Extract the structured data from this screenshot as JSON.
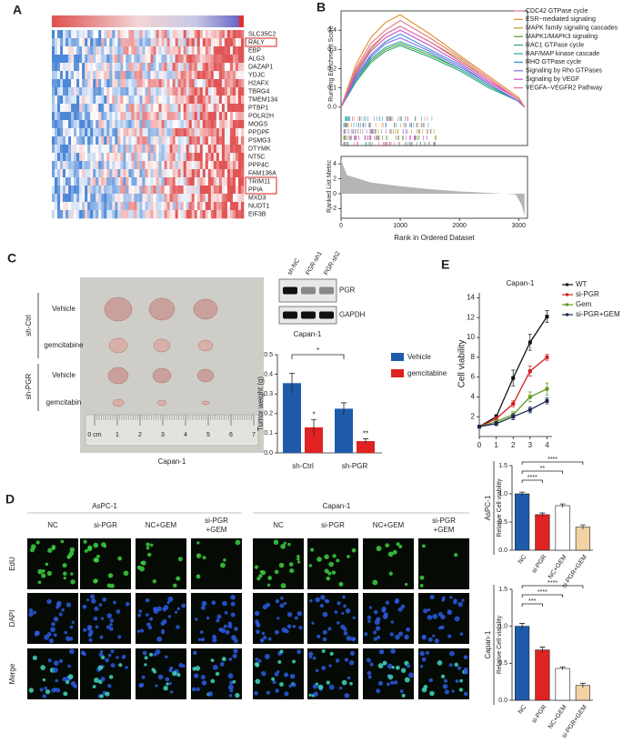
{
  "panels": {
    "a": {
      "label": "A",
      "genes": [
        "SLC35C2",
        "RALY",
        "EBP",
        "ALG3",
        "DAZAP1",
        "YDJC",
        "H2AFX",
        "TBRG4",
        "TMEM134",
        "PTBP1",
        "POLR2H",
        "MOGS",
        "PPDPF",
        "PSMG3",
        "DTYMK",
        "NT5C",
        "PPP4C",
        "FAM136A",
        "TRIM11",
        "PPIA",
        "MXD3",
        "NUDT1",
        "EIF3B"
      ]
    },
    "b": {
      "label": "B"
    },
    "c": {
      "label": "C",
      "groups": [
        "sh-Ctrl",
        "sh-PGR"
      ],
      "rows": [
        "Vehicle",
        "gemcitabine",
        "Vehicle",
        "gemcitabin"
      ],
      "ruler_labels": [
        "0 cm",
        "1",
        "2",
        "3",
        "4",
        "5",
        "6",
        "7"
      ],
      "caption": "Capan-1",
      "blot": {
        "lanes": [
          "sh-NC",
          "PGR-sh1",
          "PGR-sh2"
        ],
        "bands": [
          "PGR",
          "GAPDH"
        ],
        "caption": "Capan-1"
      }
    },
    "d": {
      "label": "D",
      "groups": [
        "AsPC-1",
        "Capan-1"
      ],
      "columns": [
        [
          "NC"
        ],
        [
          "si-PGR"
        ],
        [
          "NC+GEM"
        ],
        [
          "si-PGR",
          "+GEM"
        ]
      ],
      "rows": [
        "EdU",
        "DAPI",
        "Merge"
      ]
    },
    "e": {
      "label": "E"
    }
  },
  "chart_data": [
    {
      "type": "line",
      "ylabel": "Running Enrichment Score",
      "x": [
        0,
        250,
        500,
        750,
        1000,
        1500,
        2000,
        2500,
        3000,
        3100
      ],
      "xlim": [
        0,
        3150
      ],
      "ylim": [
        -0.02,
        0.5
      ],
      "yticks": [
        {
          "value": 0,
          "label": "0.0"
        },
        0.1,
        0.2,
        0.3,
        0.4
      ],
      "series": [
        {
          "name": "CDC42 GTPase cycle",
          "color": "#e8737f",
          "values": [
            0,
            0.2,
            0.33,
            0.4,
            0.45,
            0.36,
            0.26,
            0.15,
            0.04,
            0
          ]
        },
        {
          "name": "ESR−mediated signaling",
          "color": "#e0902a",
          "values": [
            0,
            0.22,
            0.36,
            0.44,
            0.48,
            0.38,
            0.27,
            0.16,
            0.05,
            0
          ]
        },
        {
          "name": "MAPK family signaling cascades",
          "color": "#b8a020",
          "values": [
            0,
            0.18,
            0.3,
            0.38,
            0.42,
            0.34,
            0.25,
            0.14,
            0.04,
            0
          ]
        },
        {
          "name": "MAPK1/MAPK3 signaling",
          "color": "#5aa02c",
          "values": [
            0,
            0.14,
            0.24,
            0.3,
            0.33,
            0.27,
            0.2,
            0.11,
            0.03,
            0
          ]
        },
        {
          "name": "RAC1 GTPase cycle",
          "color": "#2aa87a",
          "values": [
            0,
            0.13,
            0.23,
            0.29,
            0.32,
            0.26,
            0.19,
            0.1,
            0.03,
            0
          ]
        },
        {
          "name": "RAF/MAP kinase cascade",
          "color": "#22a8b8",
          "values": [
            0,
            0.14,
            0.25,
            0.31,
            0.34,
            0.28,
            0.2,
            0.11,
            0.03,
            0
          ]
        },
        {
          "name": "RHO GTPase cycle",
          "color": "#3a8fd8",
          "values": [
            0,
            0.16,
            0.27,
            0.34,
            0.38,
            0.3,
            0.22,
            0.12,
            0.03,
            0
          ]
        },
        {
          "name": "Signaling by Rho GTPases",
          "color": "#8a6ad8",
          "values": [
            0,
            0.15,
            0.26,
            0.33,
            0.36,
            0.29,
            0.21,
            0.12,
            0.03,
            0
          ]
        },
        {
          "name": "Signaling by VEGF",
          "color": "#d048c8",
          "values": [
            0,
            0.17,
            0.29,
            0.36,
            0.4,
            0.32,
            0.23,
            0.13,
            0.04,
            0
          ]
        },
        {
          "name": "VEGFA−VEGFR2 Pathway",
          "color": "#e86aa8",
          "values": [
            0,
            0.19,
            0.31,
            0.38,
            0.42,
            0.34,
            0.24,
            0.14,
            0.04,
            0
          ]
        }
      ]
    },
    {
      "type": "area",
      "ylabel": "Ranked List Metric",
      "xlabel": "Rank in Ordered Dataset",
      "x": [
        0,
        100,
        500,
        1000,
        1500,
        2000,
        2500,
        2950,
        3050,
        3100
      ],
      "values": [
        4.5,
        2.5,
        1.5,
        1.0,
        0.6,
        0.3,
        0.1,
        -0.1,
        -1.5,
        -3
      ],
      "xlim": [
        0,
        3150
      ],
      "ylim": [
        -3.3,
        5
      ],
      "xticks": [
        0,
        1000,
        2000,
        3000
      ],
      "yticks": [
        4,
        2,
        0,
        -2
      ],
      "color": "#b5b5b5"
    },
    {
      "type": "grouped_bar",
      "ylabel": "Tumor weight (g)",
      "categories": [
        "sh-Ctrl",
        "sh-PGR"
      ],
      "ylim": [
        0,
        0.5
      ],
      "yticks": [
        {
          "value": 0,
          "label": "0.0"
        },
        0.1,
        0.2,
        0.3,
        0.4,
        0.5
      ],
      "series": [
        {
          "name": "Vehicle",
          "color": "#1f5bab",
          "values": [
            0.355,
            0.225
          ],
          "errors": [
            0.05,
            0.03
          ]
        },
        {
          "name": "gemcitabine",
          "color": "#e02222",
          "values": [
            0.13,
            0.06
          ],
          "errors": [
            0.04,
            0.012
          ]
        }
      ],
      "annotations": [
        "*",
        "*",
        "**"
      ]
    },
    {
      "type": "line_markers",
      "title": "Capan-1",
      "ylabel": "Cell viability",
      "x": [
        0,
        1,
        2,
        3,
        4
      ],
      "xlim": [
        0,
        4.3
      ],
      "xticks": [
        0,
        1,
        2,
        3,
        4
      ],
      "ylim": [
        0,
        14.5
      ],
      "yticks": [
        2,
        4,
        6,
        8,
        10,
        12,
        14
      ],
      "series": [
        {
          "name": "WT",
          "color": "#111111",
          "values": [
            1,
            2,
            5.9,
            9.5,
            12.1
          ],
          "errors": [
            0.1,
            0.2,
            0.8,
            0.8,
            0.6
          ]
        },
        {
          "name": "si-PGR",
          "color": "#d42020",
          "values": [
            1,
            1.8,
            3.3,
            6.6,
            8
          ],
          "errors": [
            0.1,
            0.2,
            0.3,
            0.5,
            0.3
          ]
        },
        {
          "name": "Gem",
          "color": "#5e9a1c",
          "values": [
            1,
            1.5,
            2.2,
            4,
            4.8
          ],
          "errors": [
            0.1,
            0.2,
            0.3,
            0.5,
            0.6
          ]
        },
        {
          "name": "si-PGR+GEM",
          "color": "#1a2450",
          "values": [
            1,
            1.3,
            2,
            2.7,
            3.6
          ],
          "errors": [
            0.1,
            0.2,
            0.3,
            0.3,
            0.3
          ]
        }
      ]
    },
    {
      "type": "bar",
      "title": "AsPC-1",
      "ylabel": "Relative Cell viability",
      "categories": [
        "NC",
        "si-PGR",
        "NC+GEM",
        "si-PGR+GEM"
      ],
      "values": [
        1.0,
        0.63,
        0.79,
        0.41
      ],
      "errors": [
        0.03,
        0.03,
        0.03,
        0.04
      ],
      "colors": [
        "#1f5bab",
        "#e02222",
        "#ffffff",
        "#f2d2a4"
      ],
      "ylim": [
        0,
        1.5
      ],
      "yticks": [
        {
          "value": 0,
          "label": "0.0"
        },
        0.5,
        {
          "value": 1,
          "label": "1.0"
        },
        1.5
      ],
      "annotations": [
        "****",
        "**",
        "****"
      ]
    },
    {
      "type": "bar",
      "title": "Capan-1",
      "ylabel": "Relative Cell viability",
      "categories": [
        "NC",
        "si-PGR",
        "NC+GEM",
        "si-PGR+GEM"
      ],
      "values": [
        1.0,
        0.68,
        0.43,
        0.2
      ],
      "errors": [
        0.04,
        0.04,
        0.02,
        0.03
      ],
      "colors": [
        "#1f5bab",
        "#e02222",
        "#ffffff",
        "#f2d2a4"
      ],
      "ylim": [
        0,
        1.5
      ],
      "yticks": [
        {
          "value": 0,
          "label": "0.0"
        },
        0.5,
        {
          "value": 1,
          "label": "1.0"
        },
        1.5
      ],
      "annotations": [
        "***",
        "****",
        "****"
      ]
    }
  ]
}
